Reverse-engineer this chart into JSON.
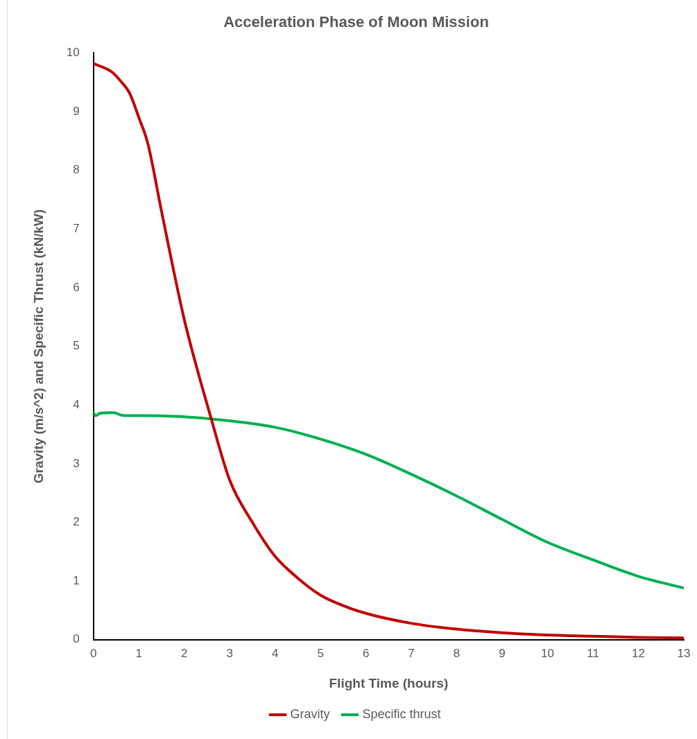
{
  "chart_data": {
    "type": "line",
    "title": "Acceleration Phase of Moon Mission",
    "xlabel": "Flight Time (hours)",
    "ylabel": "Gravity (m/s^2) and Specific Thrust (kN/kW)",
    "xlim": [
      0,
      13
    ],
    "xticks": [
      0,
      1,
      2,
      3,
      4,
      5,
      6,
      7,
      8,
      9,
      10,
      11,
      12,
      13
    ],
    "ylim": [
      0,
      10
    ],
    "yticks": [
      0,
      1,
      2,
      3,
      4,
      5,
      6,
      7,
      8,
      9,
      10
    ],
    "grid": false,
    "legend": "bottom",
    "marker": "none",
    "line_style": "solid",
    "series": [
      {
        "name": "Gravity",
        "color": "#c00000",
        "x": [
          0,
          0.4,
          0.6,
          0.8,
          1,
          1.2,
          1.5,
          2,
          2.6,
          3,
          3.5,
          4,
          4.5,
          5,
          5.5,
          6,
          7,
          8,
          9,
          10,
          11,
          12,
          13
        ],
        "values": [
          9.82,
          9.68,
          9.52,
          9.31,
          8.9,
          8.45,
          7.3,
          5.46,
          3.75,
          2.72,
          2,
          1.42,
          1.05,
          0.76,
          0.58,
          0.45,
          0.28,
          0.18,
          0.12,
          0.08,
          0.06,
          0.04,
          0.03
        ]
      },
      {
        "name": "Specific thrust",
        "color": "#00b050",
        "x": [
          0,
          0.05,
          0.15,
          0.45,
          0.6,
          0.7,
          1,
          2,
          3,
          4,
          5,
          6,
          7,
          8,
          9,
          10,
          11,
          12,
          13
        ],
        "values": [
          3.87,
          3.82,
          3.86,
          3.87,
          3.83,
          3.82,
          3.82,
          3.8,
          3.73,
          3.62,
          3.42,
          3.16,
          2.82,
          2.45,
          2.05,
          1.66,
          1.36,
          1.08,
          0.88
        ]
      }
    ]
  }
}
